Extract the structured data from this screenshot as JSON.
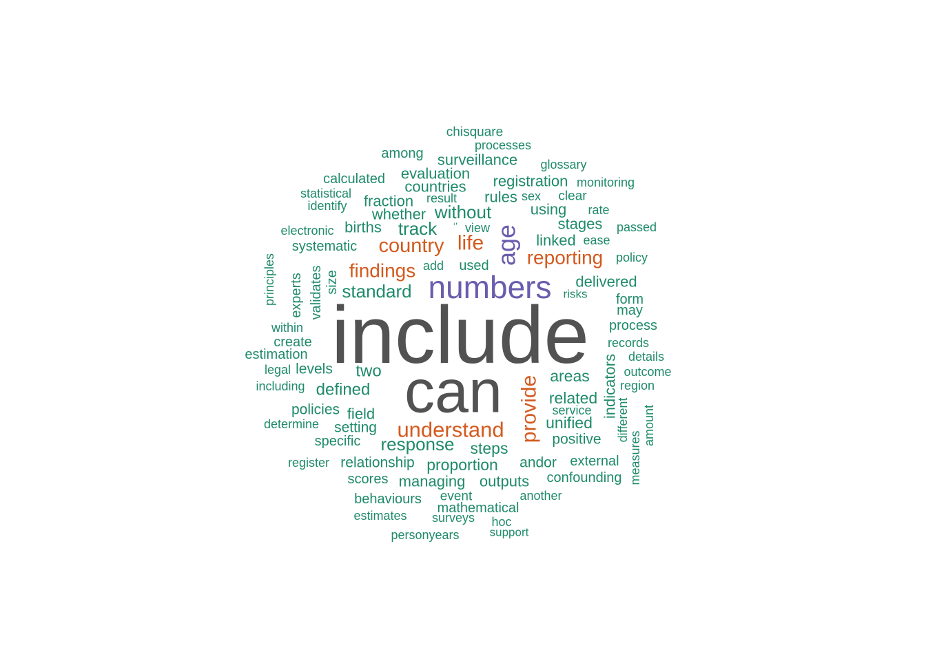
{
  "palette": {
    "gray": "#525252",
    "purple": "#6a5cad",
    "orange": "#d35a1e",
    "green": "#1f8a6a"
  },
  "words": [
    {
      "text": "include",
      "color": "gray",
      "tier": 1
    },
    {
      "text": "can",
      "color": "gray",
      "tier": 1
    },
    {
      "text": "numbers",
      "color": "purple",
      "tier": 2
    },
    {
      "text": "age",
      "color": "purple",
      "tier": 2
    },
    {
      "text": "country",
      "color": "orange",
      "tier": 3
    },
    {
      "text": "life",
      "color": "orange",
      "tier": 3
    },
    {
      "text": "findings",
      "color": "orange",
      "tier": 3
    },
    {
      "text": "reporting",
      "color": "orange",
      "tier": 3
    },
    {
      "text": "understand",
      "color": "orange",
      "tier": 3
    },
    {
      "text": "provide",
      "color": "orange",
      "tier": 3
    },
    {
      "text": "without",
      "color": "green",
      "tier": 4
    },
    {
      "text": "track",
      "color": "green",
      "tier": 4
    },
    {
      "text": "standard",
      "color": "green",
      "tier": 4
    },
    {
      "text": "response",
      "color": "green",
      "tier": 4
    },
    {
      "text": "defined",
      "color": "green",
      "tier": 4
    },
    {
      "text": "two",
      "color": "green",
      "tier": 4
    },
    {
      "text": "areas",
      "color": "green",
      "tier": 4
    },
    {
      "text": "related",
      "color": "green",
      "tier": 4
    },
    {
      "text": "unified",
      "color": "green",
      "tier": 4
    },
    {
      "text": "steps",
      "color": "green",
      "tier": 4
    },
    {
      "text": "proportion",
      "color": "green",
      "tier": 4
    },
    {
      "text": "delivered",
      "color": "green",
      "tier": 4
    },
    {
      "text": "stages",
      "color": "green",
      "tier": 4
    },
    {
      "text": "linked",
      "color": "green",
      "tier": 4
    },
    {
      "text": "using",
      "color": "green",
      "tier": 4
    },
    {
      "text": "rules",
      "color": "green",
      "tier": 4
    },
    {
      "text": "registration",
      "color": "green",
      "tier": 4
    },
    {
      "text": "evaluation",
      "color": "green",
      "tier": 4
    },
    {
      "text": "countries",
      "color": "green",
      "tier": 4
    },
    {
      "text": "surveillance",
      "color": "green",
      "tier": 4
    },
    {
      "text": "fraction",
      "color": "green",
      "tier": 4
    },
    {
      "text": "whether",
      "color": "green",
      "tier": 4
    },
    {
      "text": "births",
      "color": "green",
      "tier": 4
    },
    {
      "text": "indicators",
      "color": "green",
      "tier": 4
    },
    {
      "text": "calculated",
      "color": "green",
      "tier": 5
    },
    {
      "text": "among",
      "color": "green",
      "tier": 5
    },
    {
      "text": "systematic",
      "color": "green",
      "tier": 5
    },
    {
      "text": "field",
      "color": "green",
      "tier": 5
    },
    {
      "text": "setting",
      "color": "green",
      "tier": 5
    },
    {
      "text": "positive",
      "color": "green",
      "tier": 5
    },
    {
      "text": "managing",
      "color": "green",
      "tier": 5
    },
    {
      "text": "outputs",
      "color": "green",
      "tier": 5
    },
    {
      "text": "andor",
      "color": "green",
      "tier": 5
    },
    {
      "text": "relationship",
      "color": "green",
      "tier": 5
    },
    {
      "text": "policies",
      "color": "green",
      "tier": 5
    },
    {
      "text": "levels",
      "color": "green",
      "tier": 5
    },
    {
      "text": "estimation",
      "color": "green",
      "tier": 5
    },
    {
      "text": "process",
      "color": "green",
      "tier": 5
    },
    {
      "text": "form",
      "color": "green",
      "tier": 5
    },
    {
      "text": "may",
      "color": "green",
      "tier": 5
    },
    {
      "text": "used",
      "color": "green",
      "tier": 5
    },
    {
      "text": "specific",
      "color": "green",
      "tier": 5
    },
    {
      "text": "scores",
      "color": "green",
      "tier": 5
    },
    {
      "text": "behaviours",
      "color": "green",
      "tier": 5
    },
    {
      "text": "mathematical",
      "color": "green",
      "tier": 5
    },
    {
      "text": "create",
      "color": "green",
      "tier": 5
    },
    {
      "text": "external",
      "color": "green",
      "tier": 5
    },
    {
      "text": "confounding",
      "color": "green",
      "tier": 5
    },
    {
      "text": "clear",
      "color": "green",
      "tier": 5
    },
    {
      "text": "validates",
      "color": "green",
      "tier": 5
    },
    {
      "text": "size",
      "color": "green",
      "tier": 5
    },
    {
      "text": "experts",
      "color": "green",
      "tier": 5
    },
    {
      "text": "event",
      "color": "green",
      "tier": 6
    },
    {
      "text": "chisquare",
      "color": "green",
      "tier": 6
    },
    {
      "text": "processes",
      "color": "green",
      "tier": 6
    },
    {
      "text": "glossary",
      "color": "green",
      "tier": 6
    },
    {
      "text": "monitoring",
      "color": "green",
      "tier": 6
    },
    {
      "text": "statistical",
      "color": "green",
      "tier": 6
    },
    {
      "text": "identify",
      "color": "green",
      "tier": 6
    },
    {
      "text": "result",
      "color": "green",
      "tier": 6
    },
    {
      "text": "sex",
      "color": "green",
      "tier": 6
    },
    {
      "text": "rate",
      "color": "green",
      "tier": 6
    },
    {
      "text": "electronic",
      "color": "green",
      "tier": 6
    },
    {
      "text": "view",
      "color": "green",
      "tier": 6
    },
    {
      "text": "‘’",
      "color": "green",
      "tier": 6
    },
    {
      "text": "passed",
      "color": "green",
      "tier": 6
    },
    {
      "text": "ease",
      "color": "green",
      "tier": 6
    },
    {
      "text": "policy",
      "color": "green",
      "tier": 6
    },
    {
      "text": "add",
      "color": "green",
      "tier": 6
    },
    {
      "text": "risks",
      "color": "green",
      "tier": 6
    },
    {
      "text": "within",
      "color": "green",
      "tier": 6
    },
    {
      "text": "records",
      "color": "green",
      "tier": 6
    },
    {
      "text": "details",
      "color": "green",
      "tier": 6
    },
    {
      "text": "legal",
      "color": "green",
      "tier": 6
    },
    {
      "text": "outcome",
      "color": "green",
      "tier": 6
    },
    {
      "text": "region",
      "color": "green",
      "tier": 6
    },
    {
      "text": "including",
      "color": "green",
      "tier": 6
    },
    {
      "text": "service",
      "color": "green",
      "tier": 6
    },
    {
      "text": "determine",
      "color": "green",
      "tier": 6
    },
    {
      "text": "different",
      "color": "green",
      "tier": 6
    },
    {
      "text": "amount",
      "color": "green",
      "tier": 6
    },
    {
      "text": "measures",
      "color": "green",
      "tier": 6
    },
    {
      "text": "register",
      "color": "green",
      "tier": 6
    },
    {
      "text": "another",
      "color": "green",
      "tier": 6
    },
    {
      "text": "estimates",
      "color": "green",
      "tier": 6
    },
    {
      "text": "surveys",
      "color": "green",
      "tier": 6
    },
    {
      "text": "hoc",
      "color": "green",
      "tier": 6
    },
    {
      "text": "personyears",
      "color": "green",
      "tier": 6
    },
    {
      "text": "support",
      "color": "green",
      "tier": 6
    },
    {
      "text": "principles",
      "color": "green",
      "tier": 6
    }
  ]
}
